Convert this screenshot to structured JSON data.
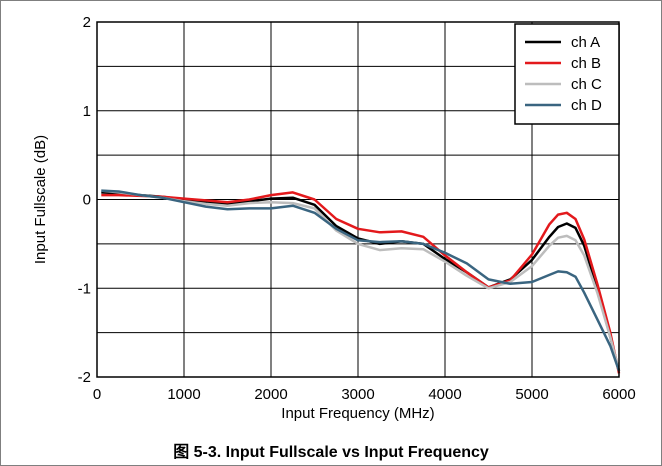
{
  "caption": "图 5-3. Input Fullscale vs Input Frequency",
  "chart_data": {
    "type": "line",
    "title": "",
    "xlabel": "Input Frequency (MHz)",
    "ylabel": "Input Fullscale (dB)",
    "xlim": [
      0,
      6000
    ],
    "ylim": [
      -2,
      2
    ],
    "xticks": [
      0,
      1000,
      2000,
      3000,
      4000,
      5000,
      6000
    ],
    "yticks": [
      -2,
      -1,
      0,
      1,
      2
    ],
    "xtick_labels": [
      "0",
      "1000",
      "2000",
      "3000",
      "4000",
      "5000",
      "6000"
    ],
    "ytick_labels": [
      "-2",
      "-1",
      "0",
      "1",
      "2"
    ],
    "grid": true,
    "legend_position": "top-right",
    "series": [
      {
        "name": "ch A",
        "color": "#000000",
        "x": [
          50,
          250,
          500,
          750,
          1000,
          1250,
          1500,
          1750,
          2000,
          2250,
          2500,
          2750,
          3000,
          3250,
          3500,
          3750,
          4000,
          4250,
          4500,
          4750,
          5000,
          5200,
          5300,
          5400,
          5500,
          5600,
          5750,
          5900,
          6000
        ],
        "y": [
          0.08,
          0.07,
          0.05,
          0.03,
          0.0,
          -0.03,
          -0.05,
          -0.02,
          0.01,
          0.02,
          -0.06,
          -0.3,
          -0.44,
          -0.5,
          -0.47,
          -0.5,
          -0.67,
          -0.82,
          -0.99,
          -0.9,
          -0.68,
          -0.42,
          -0.31,
          -0.27,
          -0.32,
          -0.52,
          -1.0,
          -1.55,
          -1.93
        ]
      },
      {
        "name": "ch B",
        "color": "#e3191c",
        "x": [
          50,
          250,
          500,
          750,
          1000,
          1250,
          1500,
          1750,
          2000,
          2250,
          2500,
          2750,
          3000,
          3250,
          3500,
          3750,
          4000,
          4250,
          4500,
          4750,
          5000,
          5200,
          5300,
          5400,
          5500,
          5600,
          5750,
          5900,
          6000
        ],
        "y": [
          0.05,
          0.05,
          0.04,
          0.03,
          0.01,
          -0.01,
          -0.03,
          0.0,
          0.05,
          0.08,
          0.0,
          -0.22,
          -0.33,
          -0.37,
          -0.36,
          -0.42,
          -0.63,
          -0.82,
          -0.99,
          -0.91,
          -0.62,
          -0.28,
          -0.17,
          -0.15,
          -0.22,
          -0.45,
          -0.95,
          -1.5,
          -1.96
        ]
      },
      {
        "name": "ch C",
        "color": "#bdbdbd",
        "x": [
          50,
          250,
          500,
          750,
          1000,
          1250,
          1500,
          1750,
          2000,
          2250,
          2500,
          2750,
          3000,
          3250,
          3500,
          3750,
          4000,
          4250,
          4500,
          4750,
          5000,
          5200,
          5300,
          5400,
          5500,
          5600,
          5750,
          5900,
          6000
        ],
        "y": [
          0.1,
          0.08,
          0.05,
          0.02,
          -0.02,
          -0.05,
          -0.07,
          -0.04,
          -0.03,
          -0.04,
          -0.1,
          -0.35,
          -0.5,
          -0.57,
          -0.55,
          -0.56,
          -0.7,
          -0.86,
          -1.0,
          -0.93,
          -0.75,
          -0.52,
          -0.43,
          -0.41,
          -0.46,
          -0.63,
          -1.05,
          -1.55,
          -1.93
        ]
      },
      {
        "name": "ch D",
        "color": "#3a6580",
        "x": [
          50,
          250,
          500,
          750,
          1000,
          1250,
          1500,
          1750,
          2000,
          2250,
          2500,
          2750,
          3000,
          3250,
          3500,
          3750,
          4000,
          4250,
          4500,
          4750,
          5000,
          5200,
          5300,
          5400,
          5500,
          5600,
          5750,
          5900,
          6000
        ],
        "y": [
          0.1,
          0.09,
          0.05,
          0.02,
          -0.03,
          -0.08,
          -0.11,
          -0.1,
          -0.1,
          -0.07,
          -0.15,
          -0.33,
          -0.46,
          -0.48,
          -0.47,
          -0.5,
          -0.6,
          -0.72,
          -0.9,
          -0.95,
          -0.93,
          -0.85,
          -0.81,
          -0.82,
          -0.87,
          -1.05,
          -1.35,
          -1.65,
          -1.93
        ]
      }
    ]
  }
}
